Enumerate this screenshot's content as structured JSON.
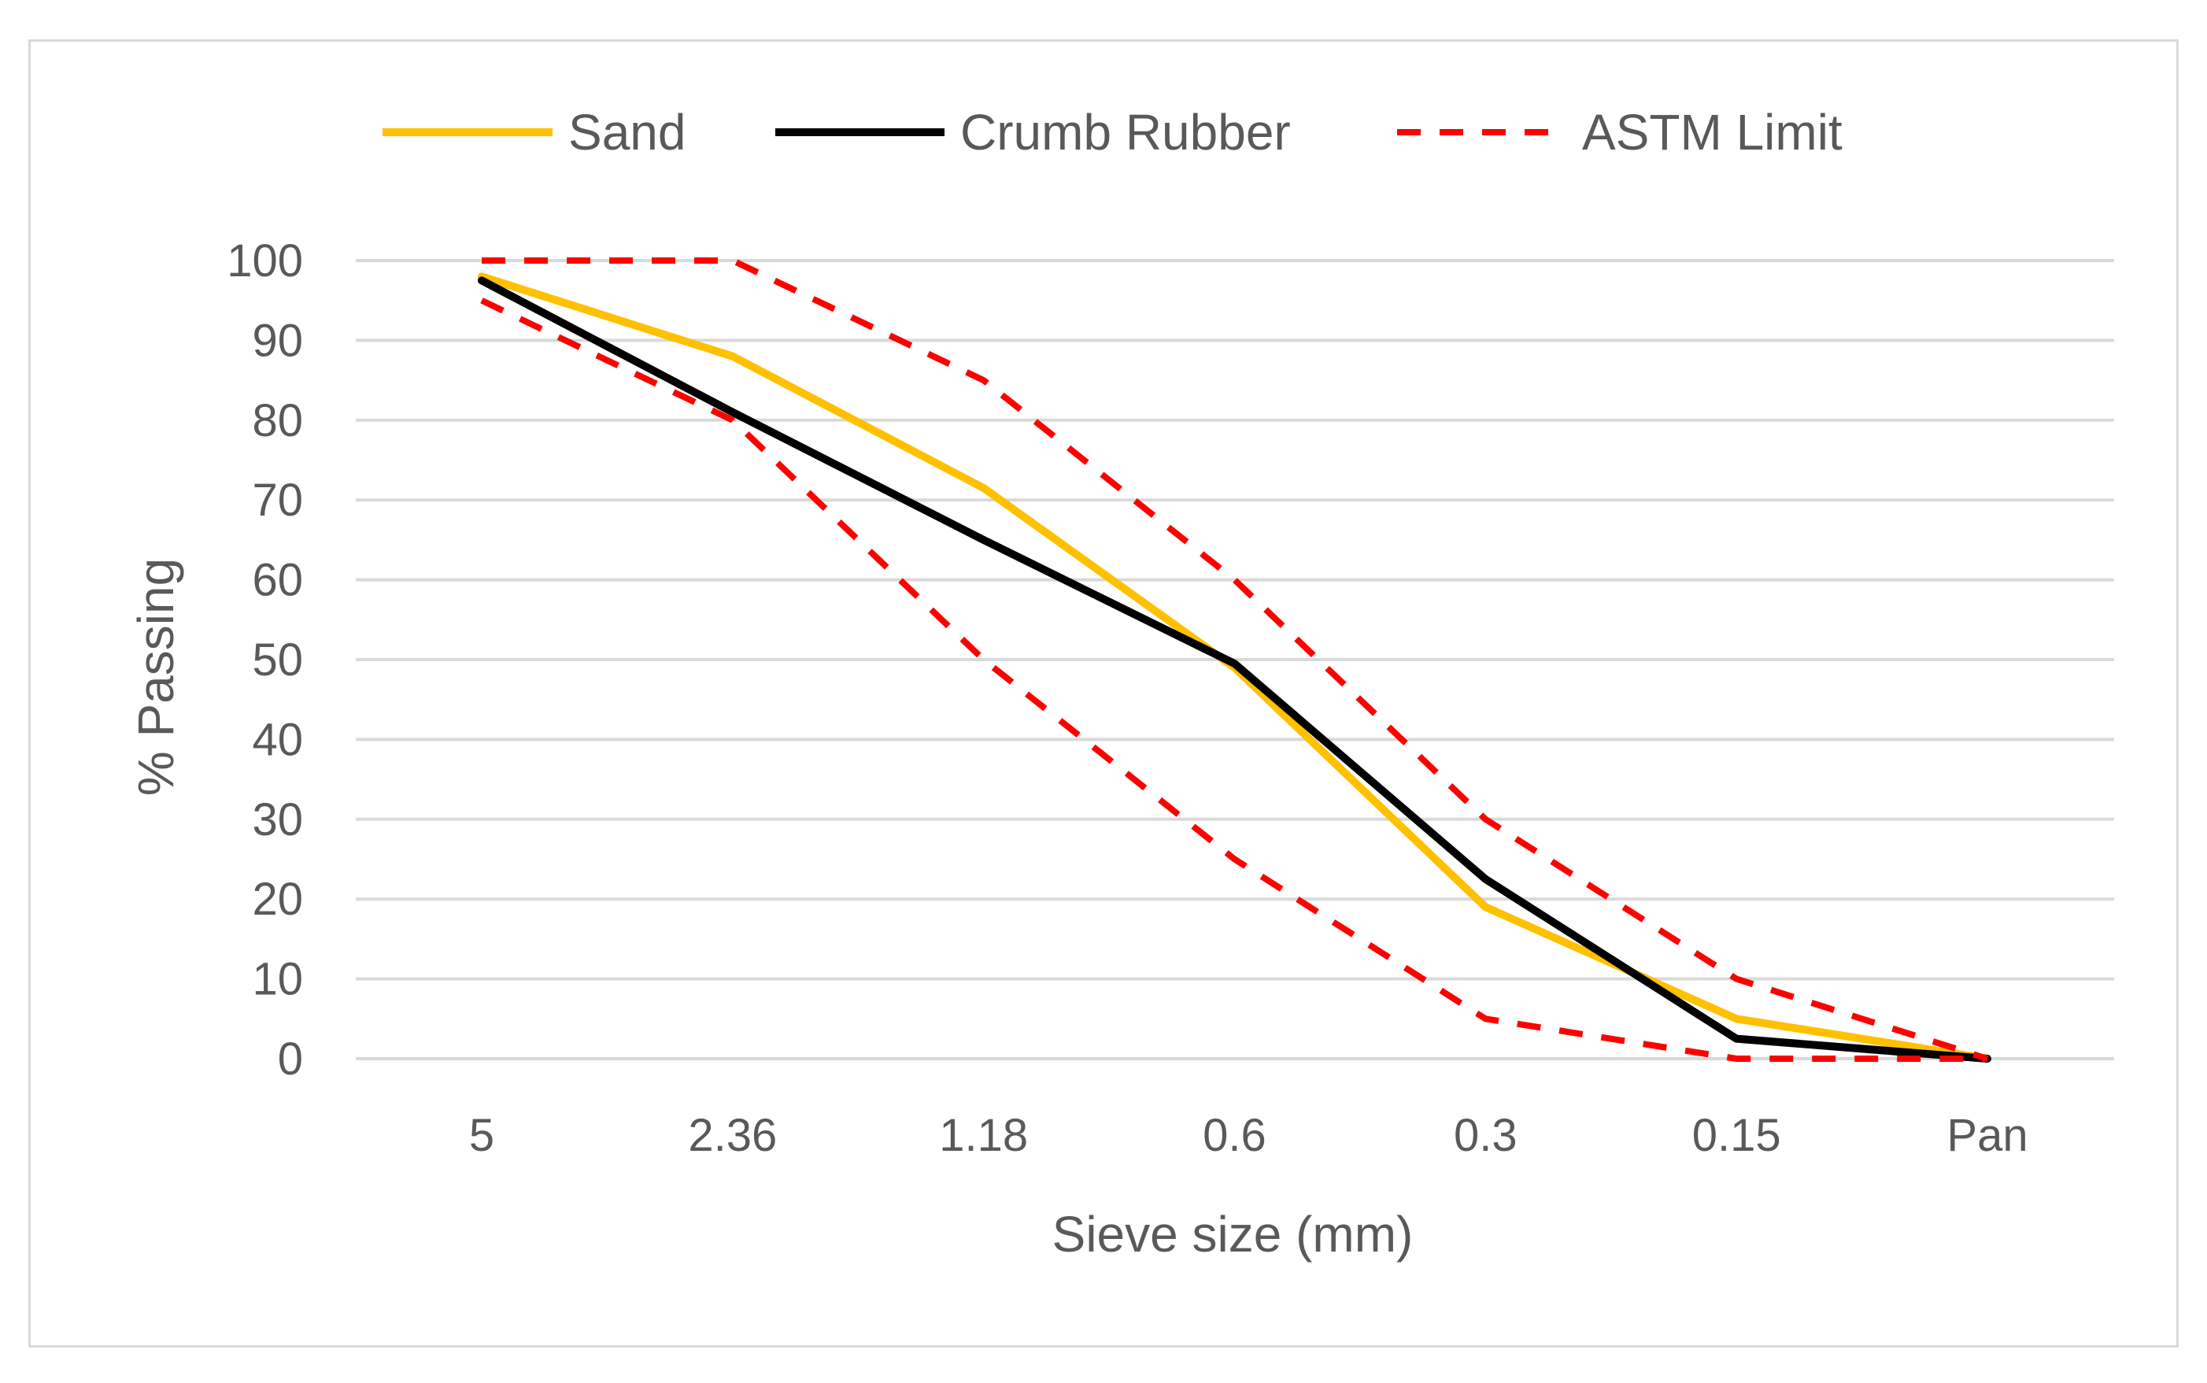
{
  "chart_data": {
    "type": "line",
    "title": "",
    "xlabel": "Sieve size (mm)",
    "ylabel": "% Passing",
    "categories": [
      "5",
      "2.36",
      "1.18",
      "0.6",
      "0.3",
      "0.15",
      "Pan"
    ],
    "ylim": [
      0,
      100
    ],
    "yticks": [
      "0",
      "10",
      "20",
      "30",
      "40",
      "50",
      "60",
      "70",
      "80",
      "90",
      "100"
    ],
    "grid": true,
    "legend_position": "top",
    "series": [
      {
        "name": "Sand",
        "values": [
          98,
          88,
          71.5,
          49,
          19,
          5,
          0
        ],
        "color": "#ffc000",
        "dash": "solid"
      },
      {
        "name": "Crumb Rubber",
        "values": [
          97.5,
          81,
          65,
          49.5,
          22.5,
          2.5,
          0
        ],
        "color": "#000000",
        "dash": "solid"
      },
      {
        "name": "ASTM Limit",
        "values": [
          100,
          100,
          85,
          60,
          30,
          10,
          0
        ],
        "color": "#ff0000",
        "dash": "dashed"
      },
      {
        "name": "",
        "values": [
          95,
          80,
          50,
          25,
          5,
          0,
          0
        ],
        "color": "#ff0000",
        "dash": "dashed"
      }
    ]
  }
}
